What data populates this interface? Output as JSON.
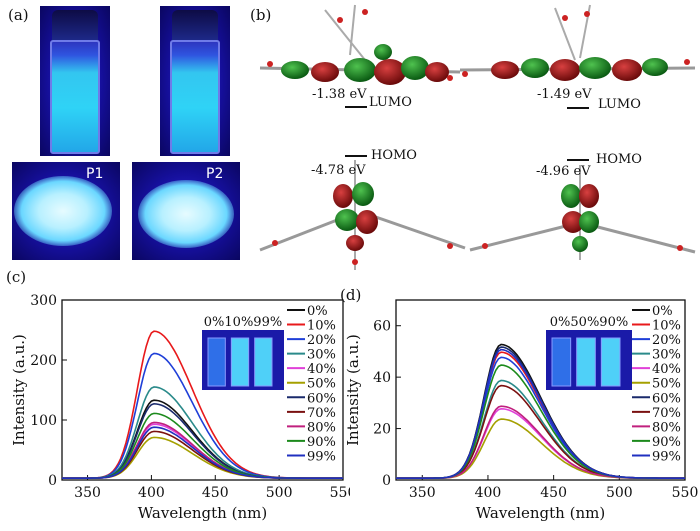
{
  "panels": {
    "a": "(a)",
    "b": "(b)",
    "c": "(c)",
    "d": "(d)"
  },
  "photos": {
    "p1": "P1",
    "p2": "P2"
  },
  "orbitals": {
    "left": {
      "lumo_energy": "-1.38 eV",
      "lumo_label": "LUMO",
      "homo_energy": "-4.78 eV",
      "homo_label": "HOMO"
    },
    "right": {
      "lumo_energy": "-1.49 eV",
      "lumo_label": "LUMO",
      "homo_energy": "-4.96 eV",
      "homo_label": "HOMO"
    }
  },
  "chart_data": [
    {
      "type": "line",
      "panel": "(c)",
      "xlabel": "Wavelength (nm)",
      "ylabel": "Intensity (a.u.)",
      "xlim": [
        330,
        550
      ],
      "ylim": [
        0,
        300
      ],
      "xticks": [
        350,
        400,
        450,
        500,
        550
      ],
      "yticks": [
        0,
        100,
        200,
        300
      ],
      "peak_wavelength": 402,
      "legend": [
        "0%",
        "10%",
        "20%",
        "30%",
        "40%",
        "50%",
        "60%",
        "70%",
        "80%",
        "90%",
        "99%"
      ],
      "inset_label": "0%10%99%",
      "series": [
        {
          "name": "0%",
          "peak": 130,
          "color": "#111111"
        },
        {
          "name": "10%",
          "peak": 245,
          "color": "#e8191b"
        },
        {
          "name": "20%",
          "peak": 208,
          "color": "#1f3fd8"
        },
        {
          "name": "30%",
          "peak": 152,
          "color": "#2a8a8a"
        },
        {
          "name": "40%",
          "peak": 90,
          "color": "#e040d8"
        },
        {
          "name": "50%",
          "peak": 68,
          "color": "#a5a000"
        },
        {
          "name": "60%",
          "peak": 124,
          "color": "#1a2a6c"
        },
        {
          "name": "70%",
          "peak": 78,
          "color": "#7a1010"
        },
        {
          "name": "80%",
          "peak": 93,
          "color": "#c0207e"
        },
        {
          "name": "90%",
          "peak": 108,
          "color": "#1c8a1c"
        },
        {
          "name": "99%",
          "peak": 85,
          "color": "#2030c0"
        }
      ],
      "series_colors": [
        "#111111",
        "#e8191b",
        "#1f3fd8",
        "#2a8a8a",
        "#e040d8",
        "#a5a000",
        "#1a2a6c",
        "#7a1010",
        "#c0207e",
        "#1c8a1c",
        "#2030c0"
      ]
    },
    {
      "type": "line",
      "panel": "(d)",
      "xlabel": "Wavelength (nm)",
      "ylabel": "Intensity (a.u.)",
      "xlim": [
        330,
        550
      ],
      "ylim": [
        0,
        70
      ],
      "xticks": [
        350,
        400,
        450,
        500,
        550
      ],
      "yticks": [
        0,
        20,
        40,
        60
      ],
      "peak_wavelength": 410,
      "legend": [
        "0%",
        "10%",
        "20%",
        "30%",
        "40%",
        "50%",
        "60%",
        "70%",
        "80%",
        "90%",
        "99%"
      ],
      "inset_label": "0%50%90%",
      "series": [
        {
          "name": "0%",
          "peak": 52,
          "color": "#111111"
        },
        {
          "name": "10%",
          "peak": 49,
          "color": "#e8191b"
        },
        {
          "name": "20%",
          "peak": 47,
          "color": "#1f3fd8"
        },
        {
          "name": "30%",
          "peak": 38,
          "color": "#2a8a8a"
        },
        {
          "name": "40%",
          "peak": 27,
          "color": "#e040d8"
        },
        {
          "name": "50%",
          "peak": 23,
          "color": "#a5a000"
        },
        {
          "name": "60%",
          "peak": 51,
          "color": "#1a2a6c"
        },
        {
          "name": "70%",
          "peak": 36,
          "color": "#7a1010"
        },
        {
          "name": "80%",
          "peak": 28,
          "color": "#c0207e"
        },
        {
          "name": "90%",
          "peak": 44,
          "color": "#1c8a1c"
        },
        {
          "name": "99%",
          "peak": 50,
          "color": "#2030c0"
        }
      ],
      "series_colors": [
        "#111111",
        "#e8191b",
        "#1f3fd8",
        "#2a8a8a",
        "#e040d8",
        "#a5a000",
        "#1a2a6c",
        "#7a1010",
        "#c0207e",
        "#1c8a1c",
        "#2030c0"
      ]
    }
  ]
}
